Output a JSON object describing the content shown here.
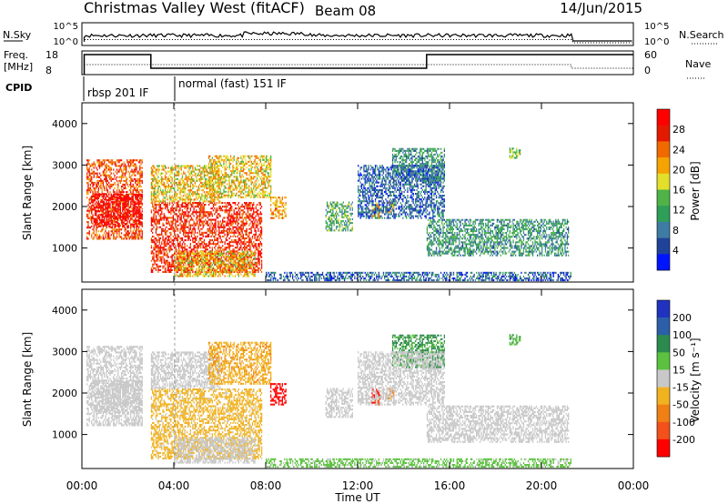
{
  "header": {
    "title": "Christmas Valley West (fitACF)",
    "beam": "Beam 08",
    "date": "14/Jun/2015"
  },
  "top_panels": {
    "nsky_label": "N.Sky",
    "nsky_ticks": [
      "10^5",
      "10^0"
    ],
    "nsearch_label": "N.Search",
    "nsearch_ticks": [
      "10^5",
      "10^0"
    ],
    "freq_label": "Freq.",
    "freq_unit": "[MHz]",
    "freq_ticks": [
      "18",
      "8"
    ],
    "nave_label": "Nave",
    "nave_ticks": [
      "60",
      "0"
    ],
    "cpid_label": "CPID",
    "cpid_segments": [
      {
        "label": "rbsp 201 IF",
        "start_h": 0.0,
        "end_h": 4.0
      },
      {
        "label": "normal (fast) 151 IF",
        "start_h": 4.0,
        "end_h": 24.0
      }
    ],
    "freq_steps": [
      {
        "start_h": 0.1,
        "end_h": 3.0,
        "mhz": 17.0
      },
      {
        "start_h": 3.0,
        "end_h": 15.0,
        "mhz": 9.5
      },
      {
        "start_h": 15.0,
        "end_h": 24.0,
        "mhz": 17.0
      }
    ]
  },
  "colors": {
    "power": [
      "#0015ff",
      "#20439a",
      "#3e7ca3",
      "#2e9e58",
      "#4fb347",
      "#e3df2a",
      "#f5a300",
      "#f06a00",
      "#e41a00",
      "#ff0000"
    ],
    "velocity": [
      "#2033c0",
      "#2b5fa8",
      "#2d8a4e",
      "#5cc13f",
      "#c8c8c8",
      "#f1b21f",
      "#f08014",
      "#f2511b",
      "#ff0000"
    ],
    "ground_scatter": "#c8c8c8"
  },
  "chart_data": [
    {
      "type": "heatmap",
      "name": "power",
      "ylabel": "Slant Range [km]",
      "yticks": [
        "1000",
        "2000",
        "3000",
        "4000"
      ],
      "ylim": [
        180,
        4500
      ],
      "colorbar_label": "Power [dB]",
      "colorbar_ticks": [
        "4",
        "8",
        "12",
        "16",
        "20",
        "24",
        "28"
      ],
      "clim": [
        0,
        30
      ]
    },
    {
      "type": "heatmap",
      "name": "velocity",
      "xlabel": "Time UT",
      "xticks": [
        "00:00",
        "04:00",
        "08:00",
        "12:00",
        "16:00",
        "20:00",
        "00:00"
      ],
      "xlim": [
        0,
        24
      ],
      "ylabel": "Slant Range [km]",
      "yticks": [
        "1000",
        "2000",
        "3000",
        "4000"
      ],
      "ylim": [
        180,
        4500
      ],
      "colorbar_label": "Velocity [m s⁻¹]",
      "colorbar_ticks": [
        "200",
        "100",
        "50",
        "15",
        "-15",
        "-50",
        "-100",
        "-200"
      ],
      "clim": [
        -250,
        250
      ]
    }
  ],
  "scatter_regions": [
    {
      "t0": 0.2,
      "t1": 2.6,
      "r0": 1200,
      "r1": 3100,
      "p": 24,
      "v": 0,
      "gs": true
    },
    {
      "t0": 0.4,
      "t1": 2.6,
      "r0": 1500,
      "r1": 2300,
      "p": 29,
      "v": 0,
      "gs": true
    },
    {
      "t0": 3.0,
      "t1": 7.8,
      "r0": 400,
      "r1": 2100,
      "p": 26,
      "v": -30,
      "gs": false
    },
    {
      "t0": 3.0,
      "t1": 6.0,
      "r0": 2100,
      "r1": 3000,
      "p": 18,
      "v": -20,
      "gs": true
    },
    {
      "t0": 5.5,
      "t1": 8.2,
      "r0": 2200,
      "r1": 3200,
      "p": 18,
      "v": -40,
      "gs": false
    },
    {
      "t0": 4.0,
      "t1": 7.5,
      "r0": 300,
      "r1": 900,
      "p": 18,
      "v": 0,
      "gs": true
    },
    {
      "t0": 8.2,
      "t1": 8.9,
      "r0": 1700,
      "r1": 2200,
      "p": 20,
      "v": -220,
      "gs": false
    },
    {
      "t0": 10.6,
      "t1": 11.8,
      "r0": 1400,
      "r1": 2100,
      "p": 12,
      "v": 0,
      "gs": true
    },
    {
      "t0": 12.6,
      "t1": 13.0,
      "r0": 1700,
      "r1": 2100,
      "p": 18,
      "v": -200,
      "gs": false
    },
    {
      "t0": 13.2,
      "t1": 13.6,
      "r0": 1850,
      "r1": 2100,
      "p": 18,
      "v": -60,
      "gs": false
    },
    {
      "t0": 13.5,
      "t1": 15.8,
      "r0": 2600,
      "r1": 3400,
      "p": 10,
      "v": 60,
      "gs": false
    },
    {
      "t0": 12.0,
      "t1": 15.8,
      "r0": 1700,
      "r1": 3000,
      "p": 6,
      "v": 0,
      "gs": true
    },
    {
      "t0": 15.0,
      "t1": 21.2,
      "r0": 800,
      "r1": 1700,
      "p": 10,
      "v": 0,
      "gs": true
    },
    {
      "t0": 8.0,
      "t1": 21.3,
      "r0": 200,
      "r1": 420,
      "p": 6,
      "v": 30,
      "gs": false
    },
    {
      "t0": 18.6,
      "t1": 19.1,
      "r0": 3150,
      "r1": 3400,
      "p": 14,
      "v": 40,
      "gs": false
    }
  ]
}
